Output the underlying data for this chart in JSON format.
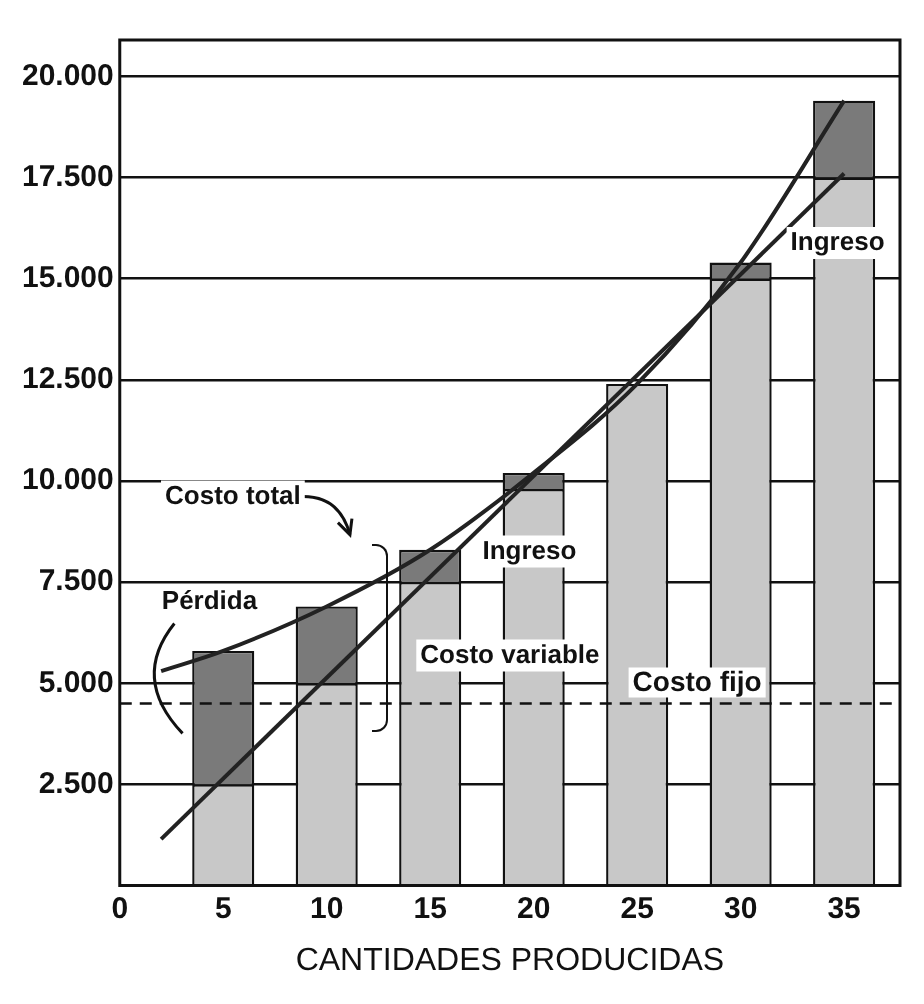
{
  "chart_data": {
    "type": "bar",
    "xlabel": "CANTIDADES PRODUCIDAS",
    "x": [
      5,
      10,
      15,
      20,
      25,
      30,
      35
    ],
    "stacked": true,
    "series": [
      {
        "color": "#c8c8c8",
        "values": [
          2500,
          5000,
          7500,
          9800,
          12400,
          15000,
          17500
        ]
      },
      {
        "color": "#7a7a7a",
        "values": [
          3300,
          1900,
          800,
          400,
          null,
          400,
          1900
        ]
      },
      {
        "type": "line",
        "color": "#222222",
        "x": [
          2,
          5,
          10,
          15,
          20,
          25,
          30,
          35
        ],
        "values": [
          5300,
          5800,
          6900,
          8300,
          10200,
          12400,
          15400,
          19400
        ]
      },
      {
        "type": "line",
        "color": "#222222",
        "x": [
          2,
          35
        ],
        "values": [
          1150,
          17600
        ]
      }
    ],
    "xlim": [
      0,
      37.7
    ],
    "ylim": [
      0,
      20900
    ],
    "xticks": [
      0,
      5,
      10,
      15,
      20,
      25,
      30,
      35
    ],
    "yticks": [
      {
        "value": 2500,
        "label": "2.500"
      },
      {
        "value": 5000,
        "label": "5.000"
      },
      {
        "value": 7500,
        "label": "7.500"
      },
      {
        "value": 10000,
        "label": "10.000"
      },
      {
        "value": 12500,
        "label": "12.500"
      },
      {
        "value": 15000,
        "label": "15.000"
      },
      {
        "value": 17500,
        "label": "17.500"
      },
      {
        "value": 20000,
        "label": "20.000"
      }
    ],
    "grid": "y",
    "marker": "none",
    "line_style": "solid",
    "ref_lines": [
      {
        "axis": "y",
        "value": 4500,
        "label": "Costo fijo",
        "line_style": "dashed"
      }
    ],
    "annotations": [
      "Costo total",
      "Pérdida",
      "Ingreso",
      "Costo variable",
      "Ingreso"
    ]
  }
}
